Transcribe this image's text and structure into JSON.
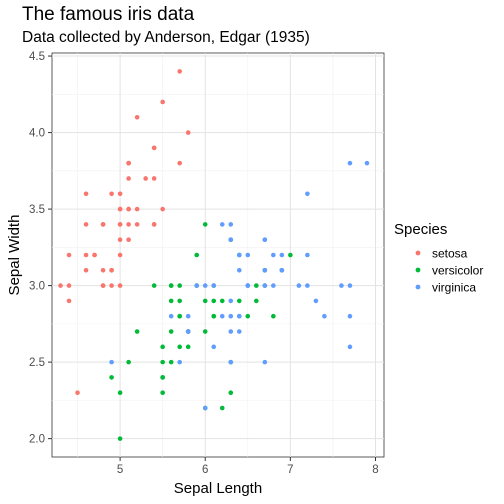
{
  "chart_data": {
    "type": "scatter",
    "title": "The famous iris data",
    "subtitle": "Data collected by Anderson, Edgar (1935)",
    "xlabel": "Sepal Length",
    "ylabel": "Sepal Width",
    "xlim": [
      4.2,
      8.1
    ],
    "ylim": [
      1.88,
      4.52
    ],
    "x_ticks": [
      5,
      6,
      7,
      8
    ],
    "y_ticks": [
      2.0,
      2.5,
      3.0,
      3.5,
      4.0,
      4.5
    ],
    "x_tick_labels": [
      "5",
      "6",
      "7",
      "8"
    ],
    "y_tick_labels": [
      "2.0",
      "2.5",
      "3.0",
      "3.5",
      "4.0",
      "4.5"
    ],
    "grid": true,
    "legend": {
      "title": "Species",
      "position": "right"
    },
    "series": [
      {
        "name": "setosa",
        "color": "#F8766D",
        "points": [
          [
            5.1,
            3.5
          ],
          [
            4.9,
            3.0
          ],
          [
            4.7,
            3.2
          ],
          [
            4.6,
            3.1
          ],
          [
            5.0,
            3.6
          ],
          [
            5.4,
            3.9
          ],
          [
            4.6,
            3.4
          ],
          [
            5.0,
            3.4
          ],
          [
            4.4,
            2.9
          ],
          [
            4.9,
            3.1
          ],
          [
            5.4,
            3.7
          ],
          [
            4.8,
            3.4
          ],
          [
            4.8,
            3.0
          ],
          [
            4.3,
            3.0
          ],
          [
            5.8,
            4.0
          ],
          [
            5.7,
            4.4
          ],
          [
            5.4,
            3.9
          ],
          [
            5.1,
            3.5
          ],
          [
            5.7,
            3.8
          ],
          [
            5.1,
            3.8
          ],
          [
            5.4,
            3.4
          ],
          [
            5.1,
            3.7
          ],
          [
            4.6,
            3.6
          ],
          [
            5.1,
            3.3
          ],
          [
            4.8,
            3.4
          ],
          [
            5.0,
            3.0
          ],
          [
            5.0,
            3.4
          ],
          [
            5.2,
            3.5
          ],
          [
            5.2,
            3.4
          ],
          [
            4.7,
            3.2
          ],
          [
            4.8,
            3.1
          ],
          [
            5.4,
            3.4
          ],
          [
            5.2,
            4.1
          ],
          [
            5.5,
            4.2
          ],
          [
            4.9,
            3.1
          ],
          [
            5.0,
            3.2
          ],
          [
            5.5,
            3.5
          ],
          [
            4.9,
            3.6
          ],
          [
            4.4,
            3.0
          ],
          [
            5.1,
            3.4
          ],
          [
            5.0,
            3.5
          ],
          [
            4.5,
            2.3
          ],
          [
            4.4,
            3.2
          ],
          [
            5.0,
            3.5
          ],
          [
            5.1,
            3.8
          ],
          [
            4.8,
            3.0
          ],
          [
            5.1,
            3.8
          ],
          [
            4.6,
            3.2
          ],
          [
            5.3,
            3.7
          ],
          [
            5.0,
            3.3
          ]
        ]
      },
      {
        "name": "versicolor",
        "color": "#00BA38",
        "points": [
          [
            7.0,
            3.2
          ],
          [
            6.4,
            3.2
          ],
          [
            6.9,
            3.1
          ],
          [
            5.5,
            2.3
          ],
          [
            6.5,
            2.8
          ],
          [
            5.7,
            2.8
          ],
          [
            6.3,
            3.3
          ],
          [
            4.9,
            2.4
          ],
          [
            6.6,
            2.9
          ],
          [
            5.2,
            2.7
          ],
          [
            5.0,
            2.0
          ],
          [
            5.9,
            3.0
          ],
          [
            6.0,
            2.2
          ],
          [
            6.1,
            2.9
          ],
          [
            5.6,
            2.9
          ],
          [
            6.7,
            3.1
          ],
          [
            5.6,
            3.0
          ],
          [
            5.8,
            2.7
          ],
          [
            6.2,
            2.2
          ],
          [
            5.6,
            2.5
          ],
          [
            5.9,
            3.2
          ],
          [
            6.1,
            2.8
          ],
          [
            6.3,
            2.5
          ],
          [
            6.1,
            2.8
          ],
          [
            6.4,
            2.9
          ],
          [
            6.6,
            3.0
          ],
          [
            6.8,
            2.8
          ],
          [
            6.7,
            3.0
          ],
          [
            6.0,
            2.9
          ],
          [
            5.7,
            2.6
          ],
          [
            5.5,
            2.4
          ],
          [
            5.5,
            2.4
          ],
          [
            5.8,
            2.7
          ],
          [
            6.0,
            2.7
          ],
          [
            5.4,
            3.0
          ],
          [
            6.0,
            3.4
          ],
          [
            6.7,
            3.1
          ],
          [
            6.3,
            2.3
          ],
          [
            5.6,
            3.0
          ],
          [
            5.5,
            2.5
          ],
          [
            5.5,
            2.6
          ],
          [
            6.1,
            3.0
          ],
          [
            5.8,
            2.6
          ],
          [
            5.0,
            2.3
          ],
          [
            5.6,
            2.7
          ],
          [
            5.7,
            3.0
          ],
          [
            5.7,
            2.9
          ],
          [
            6.2,
            2.9
          ],
          [
            5.1,
            2.5
          ],
          [
            5.7,
            2.8
          ]
        ]
      },
      {
        "name": "virginica",
        "color": "#619CFF",
        "points": [
          [
            6.3,
            3.3
          ],
          [
            5.8,
            2.7
          ],
          [
            7.1,
            3.0
          ],
          [
            6.3,
            2.9
          ],
          [
            6.5,
            3.0
          ],
          [
            7.6,
            3.0
          ],
          [
            4.9,
            2.5
          ],
          [
            7.3,
            2.9
          ],
          [
            6.7,
            2.5
          ],
          [
            7.2,
            3.6
          ],
          [
            6.5,
            3.2
          ],
          [
            6.4,
            2.7
          ],
          [
            6.8,
            3.0
          ],
          [
            5.7,
            2.5
          ],
          [
            5.8,
            2.8
          ],
          [
            6.4,
            3.2
          ],
          [
            6.5,
            3.0
          ],
          [
            7.7,
            3.8
          ],
          [
            7.7,
            2.6
          ],
          [
            6.0,
            2.2
          ],
          [
            6.9,
            3.2
          ],
          [
            5.6,
            2.8
          ],
          [
            7.7,
            2.8
          ],
          [
            6.3,
            2.7
          ],
          [
            6.7,
            3.3
          ],
          [
            7.2,
            3.2
          ],
          [
            6.2,
            2.8
          ],
          [
            6.1,
            3.0
          ],
          [
            6.4,
            2.8
          ],
          [
            7.2,
            3.0
          ],
          [
            7.4,
            2.8
          ],
          [
            7.9,
            3.8
          ],
          [
            6.4,
            2.8
          ],
          [
            6.3,
            2.8
          ],
          [
            6.1,
            2.6
          ],
          [
            7.7,
            3.0
          ],
          [
            6.3,
            3.4
          ],
          [
            6.4,
            3.1
          ],
          [
            6.0,
            3.0
          ],
          [
            6.9,
            3.1
          ],
          [
            6.7,
            3.1
          ],
          [
            6.9,
            3.1
          ],
          [
            5.8,
            2.7
          ],
          [
            6.8,
            3.2
          ],
          [
            6.7,
            3.3
          ],
          [
            6.7,
            3.0
          ],
          [
            6.3,
            2.5
          ],
          [
            6.5,
            3.0
          ],
          [
            6.2,
            3.4
          ],
          [
            5.9,
            3.0
          ]
        ]
      }
    ]
  }
}
